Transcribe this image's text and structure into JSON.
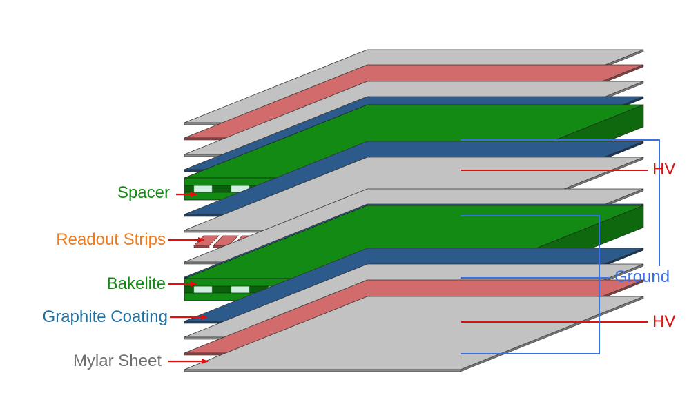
{
  "diagram": {
    "colors": {
      "mylar": "#c2c2c2",
      "pink": "#d26b6b",
      "graphite": "#2c5a8a",
      "bakelite": "#138a13",
      "bakelite_dark": "#0b5e0b",
      "spacer_gap": "#cfeee0",
      "arrow_red": "#e01010",
      "ground_blue": "#3a6fe6"
    },
    "labels": {
      "spacer": {
        "text": "Spacer",
        "color": "#138a13"
      },
      "readout_strips": {
        "text": "Readout Strips",
        "color": "#f07a1a"
      },
      "bakelite": {
        "text": "Bakelite",
        "color": "#138a13"
      },
      "graphite_coating": {
        "text": "Graphite Coating",
        "color": "#1e6fa0"
      },
      "mylar_sheet": {
        "text": "Mylar Sheet",
        "color": "#6e6e6e"
      },
      "hv_top": {
        "text": "HV",
        "color": "#e01010"
      },
      "hv_bottom": {
        "text": "HV",
        "color": "#e01010"
      },
      "ground": {
        "text": "Ground",
        "color": "#3a6fe6"
      }
    }
  }
}
